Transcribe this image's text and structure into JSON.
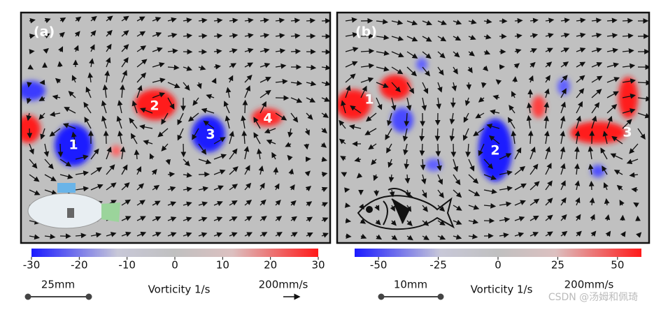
{
  "panels": [
    {
      "label": "(a)",
      "vortices": [
        "1",
        "2",
        "3",
        "4"
      ],
      "colorbar": {
        "lim": [
          -30,
          30
        ],
        "ticks": [
          -30,
          -20,
          -10,
          0,
          10,
          20,
          30
        ]
      },
      "scale_length": "25mm",
      "colorbar_label": "Vorticity 1/s",
      "velocity_scale": "200mm/s"
    },
    {
      "label": "(b)",
      "vortices": [
        "1",
        "2",
        "3"
      ],
      "colorbar": {
        "lim": [
          -60,
          60
        ],
        "ticks": [
          -50,
          -25,
          0,
          25,
          50
        ]
      },
      "scale_length": "10mm",
      "colorbar_label": "Vorticity 1/s",
      "velocity_scale": "200mm/s"
    }
  ],
  "watermark": "CSDN @汤姆和佩琦"
}
